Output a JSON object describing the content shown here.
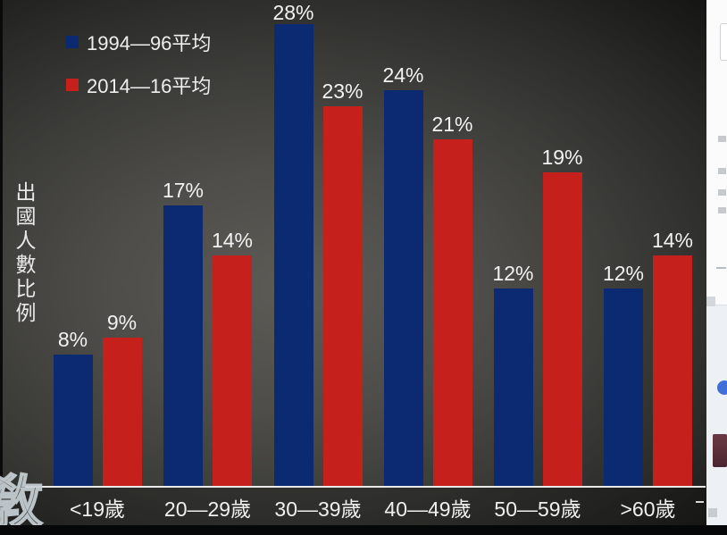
{
  "chart_data": {
    "type": "bar",
    "title": "",
    "categories": [
      "<19歲",
      "20—29歲",
      "30—39歲",
      "40—49歲",
      "50—59歲",
      ">60歲"
    ],
    "series": [
      {
        "name": "1994—96平均",
        "color": "#0b2a72",
        "values": [
          8,
          17,
          28,
          24,
          12,
          12
        ]
      },
      {
        "name": "2014—16平均",
        "color": "#c6201c",
        "values": [
          9,
          14,
          23,
          21,
          19,
          14
        ]
      }
    ],
    "xlabel": "",
    "ylabel": "出國人數比例",
    "value_suffix": "%",
    "ylim": [
      0,
      30
    ],
    "grid": false,
    "legend_position": "top-left",
    "data_labels": true
  },
  "watermark": {
    "glyph": "敎"
  },
  "colors": {
    "background_center": "#5c5b56",
    "background_edge": "#121212",
    "axis_line": "#e9e9e9",
    "label_text": "#f2f2f2",
    "side_strip_top": "#fbfbfb",
    "side_strip_bottom": "#edf0f4"
  }
}
